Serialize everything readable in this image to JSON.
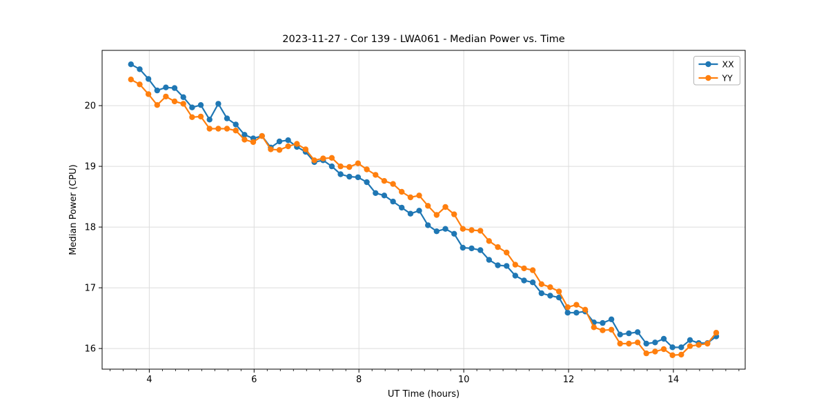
{
  "chart_data": {
    "type": "line",
    "title": "2023-11-27 - Cor 139 - LWA061 - Median Power vs. Time",
    "xlabel": "UT Time (hours)",
    "ylabel": "Median Power (CPU)",
    "xlim": [
      3.1,
      15.37
    ],
    "ylim": [
      15.66,
      20.91
    ],
    "x_ticks": [
      4,
      6,
      8,
      10,
      12,
      14
    ],
    "x_tick_labels": [
      "4",
      "6",
      "8",
      "10",
      "12",
      "14"
    ],
    "x_minor_tick_step": 0.25,
    "y_ticks": [
      16,
      17,
      18,
      19,
      20
    ],
    "y_tick_labels": [
      "16",
      "17",
      "18",
      "19",
      "20"
    ],
    "grid": true,
    "grid_color": "#dcdcdc",
    "legend_position": "upper right",
    "marker": "circle",
    "x": [
      3.65,
      3.817,
      3.983,
      4.15,
      4.317,
      4.483,
      4.65,
      4.817,
      4.983,
      5.15,
      5.317,
      5.483,
      5.65,
      5.817,
      5.983,
      6.15,
      6.317,
      6.483,
      6.65,
      6.817,
      6.983,
      7.15,
      7.317,
      7.483,
      7.65,
      7.817,
      7.983,
      8.15,
      8.317,
      8.483,
      8.65,
      8.817,
      8.983,
      9.15,
      9.317,
      9.483,
      9.65,
      9.817,
      9.983,
      10.15,
      10.317,
      10.483,
      10.65,
      10.817,
      10.983,
      11.15,
      11.317,
      11.483,
      11.65,
      11.817,
      11.983,
      12.15,
      12.317,
      12.483,
      12.65,
      12.817,
      12.983,
      13.15,
      13.317,
      13.483,
      13.65,
      13.817,
      13.983,
      14.15,
      14.317,
      14.483,
      14.65,
      14.817
    ],
    "series": [
      {
        "name": "XX",
        "color": "#1f77b4",
        "values": [
          20.68,
          20.6,
          20.44,
          20.25,
          20.3,
          20.29,
          20.14,
          19.97,
          20.01,
          19.77,
          20.03,
          19.79,
          19.69,
          19.52,
          19.46,
          19.5,
          19.31,
          19.41,
          19.43,
          19.32,
          19.24,
          19.07,
          19.1,
          19.0,
          18.87,
          18.83,
          18.82,
          18.74,
          18.56,
          18.52,
          18.42,
          18.32,
          18.22,
          18.27,
          18.03,
          17.93,
          17.97,
          17.89,
          17.66,
          17.65,
          17.62,
          17.46,
          17.37,
          17.36,
          17.2,
          17.12,
          17.09,
          16.91,
          16.87,
          16.84,
          16.59,
          16.59,
          16.61,
          16.43,
          16.42,
          16.48,
          16.23,
          16.25,
          16.27,
          16.08,
          16.1,
          16.16,
          16.02,
          16.02,
          16.14,
          16.09,
          16.09,
          16.2
        ]
      },
      {
        "name": "YY",
        "color": "#ff7f0e",
        "values": [
          20.43,
          20.35,
          20.19,
          20.01,
          20.15,
          20.07,
          20.03,
          19.81,
          19.82,
          19.62,
          19.62,
          19.62,
          19.59,
          19.44,
          19.4,
          19.5,
          19.28,
          19.27,
          19.33,
          19.37,
          19.28,
          19.1,
          19.13,
          19.14,
          19.0,
          18.99,
          19.05,
          18.95,
          18.86,
          18.76,
          18.71,
          18.58,
          18.49,
          18.52,
          18.35,
          18.2,
          18.33,
          18.21,
          17.97,
          17.95,
          17.94,
          17.77,
          17.67,
          17.58,
          17.38,
          17.32,
          17.29,
          17.06,
          17.01,
          16.94,
          16.68,
          16.72,
          16.64,
          16.35,
          16.3,
          16.31,
          16.08,
          16.08,
          16.1,
          15.92,
          15.95,
          15.99,
          15.89,
          15.9,
          16.04,
          16.06,
          16.08,
          16.26
        ]
      }
    ]
  }
}
